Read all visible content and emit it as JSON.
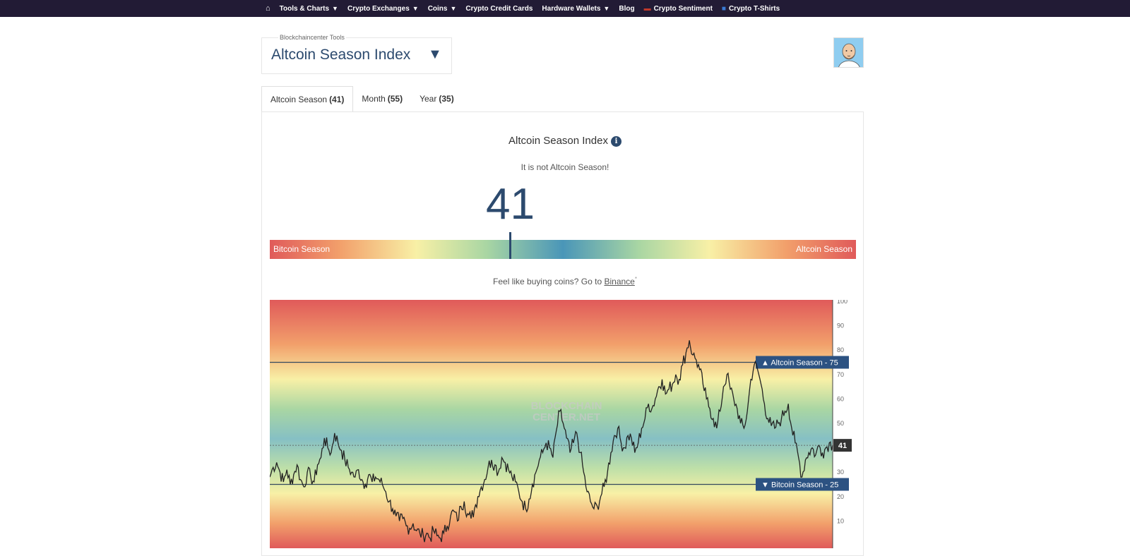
{
  "nav": {
    "items": [
      {
        "label": "Tools & Charts",
        "caret": true
      },
      {
        "label": "Crypto Exchanges",
        "caret": true
      },
      {
        "label": "Coins",
        "caret": true
      },
      {
        "label": "Crypto Credit Cards",
        "caret": false
      },
      {
        "label": "Hardware Wallets",
        "caret": true
      },
      {
        "label": "Blog",
        "caret": false
      },
      {
        "label": "Crypto Sentiment",
        "caret": false
      },
      {
        "label": "Crypto T-Shirts",
        "caret": false
      }
    ],
    "background": "#221b35"
  },
  "tool_selector": {
    "legend": "Blockchaincenter Tools",
    "title": "Altcoin Season Index",
    "caret": "▼"
  },
  "tabs": [
    {
      "label": "Altcoin Season",
      "value": "(41)"
    },
    {
      "label": "Month",
      "value": "(55)"
    },
    {
      "label": "Year",
      "value": "(35)"
    }
  ],
  "index": {
    "title": "Altcoin Season Index",
    "status": "It is not Altcoin Season!",
    "value": "41",
    "value_number": 41,
    "scale_left": "Bitcoin Season",
    "scale_right": "Altcoin Season"
  },
  "promo": {
    "text": "Feel like buying coins? Go to",
    "link": "Binance",
    "mark": "*"
  },
  "chart_data": {
    "type": "line",
    "ylim": [
      0,
      100
    ],
    "yticks": [
      "10",
      "20",
      "30",
      "40",
      "50",
      "60",
      "70",
      "80",
      "90",
      "100"
    ],
    "watermark": [
      "BLOCKCHAIN",
      "CENTER.NET"
    ],
    "reference_lines": [
      {
        "label": "▲ Altcoin Season - 75",
        "value": 75
      },
      {
        "label": "▼ Bitcoin Season - 25",
        "value": 25
      }
    ],
    "current": {
      "label": "41",
      "value": 41
    },
    "series": [
      {
        "values": [
          28,
          32,
          34,
          30,
          26,
          31,
          25,
          29,
          33,
          27,
          24,
          30,
          28,
          26,
          33,
          36,
          44,
          40,
          38,
          46,
          42,
          39,
          35,
          32,
          30,
          28,
          31,
          27,
          25,
          29,
          26,
          28,
          27,
          25,
          22,
          18,
          15,
          12,
          10,
          11,
          8,
          7,
          9,
          6,
          5,
          4,
          5,
          3,
          6,
          4,
          3,
          5,
          8,
          12,
          14,
          10,
          16,
          18,
          13,
          11,
          15,
          20,
          24,
          27,
          32,
          35,
          33,
          30,
          36,
          34,
          31,
          28,
          26,
          22,
          18,
          15,
          19,
          25,
          30,
          35,
          38,
          42,
          40,
          36,
          47,
          55,
          50,
          44,
          38,
          42,
          46,
          38,
          30,
          22,
          18,
          15,
          16,
          20,
          24,
          30,
          38,
          45,
          48,
          42,
          40,
          45,
          44,
          38,
          42,
          48,
          52,
          58,
          56,
          60,
          65,
          68,
          62,
          64,
          66,
          70,
          68,
          74,
          79,
          84,
          78,
          76,
          72,
          66,
          60,
          56,
          52,
          48,
          55,
          65,
          70,
          64,
          60,
          56,
          50,
          48,
          55,
          68,
          74,
          72,
          66,
          58,
          52,
          49,
          48,
          50,
          52,
          55,
          58,
          48,
          42,
          36,
          28,
          35,
          38,
          40,
          37,
          41,
          38,
          40,
          42,
          41
        ]
      }
    ]
  }
}
